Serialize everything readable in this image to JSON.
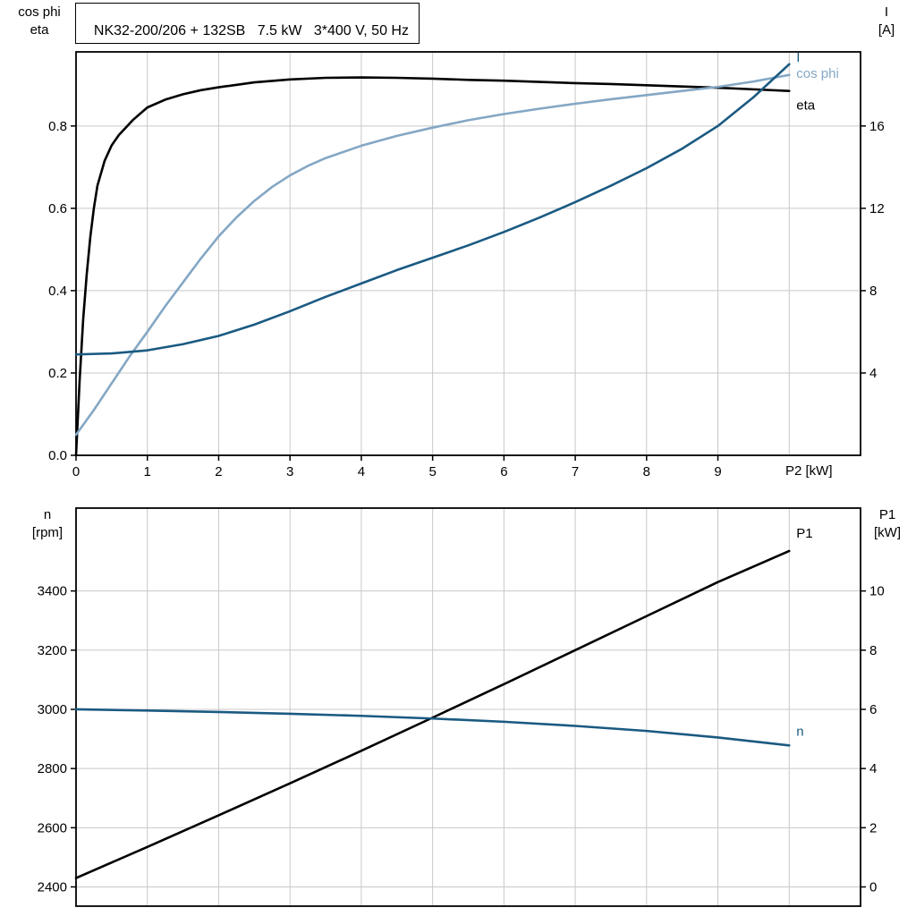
{
  "style": {
    "background": "#ffffff",
    "grid_color": "#c8c8c8",
    "frame_color": "#000000",
    "dark_blue": "#1a5a82",
    "light_blue": "#84a7c4",
    "black": "#000000"
  },
  "chart_data": [
    {
      "type": "line",
      "title": "NK32-200/206 + 132SB   7.5 kW   3*400 V, 50 Hz",
      "xlabel": "P2 [kW]",
      "xlim": [
        0,
        11
      ],
      "grid": "on",
      "x_gridlines": [
        1,
        2,
        3,
        4,
        5,
        6,
        7,
        8,
        9,
        10
      ],
      "x_ticks": [
        {
          "v": 0,
          "t": "0"
        },
        {
          "v": 1,
          "t": "1"
        },
        {
          "v": 2,
          "t": "2"
        },
        {
          "v": 3,
          "t": "3"
        },
        {
          "v": 4,
          "t": "4"
        },
        {
          "v": 5,
          "t": "5"
        },
        {
          "v": 6,
          "t": "6"
        },
        {
          "v": 7,
          "t": "7"
        },
        {
          "v": 8,
          "t": "8"
        },
        {
          "v": 9,
          "t": "9"
        }
      ],
      "left_axis": {
        "title_lines": [
          "cos phi",
          "eta"
        ],
        "lim": [
          0,
          0.98
        ],
        "ticks": [
          {
            "v": 0.0,
            "t": "0.0"
          },
          {
            "v": 0.2,
            "t": "0.2"
          },
          {
            "v": 0.4,
            "t": "0.4"
          },
          {
            "v": 0.6,
            "t": "0.6"
          },
          {
            "v": 0.8,
            "t": "0.8"
          }
        ]
      },
      "right_axis": {
        "title_lines": [
          "I",
          "[A]"
        ],
        "lim": [
          0,
          19.6
        ],
        "ticks": [
          {
            "v": 4,
            "t": "4"
          },
          {
            "v": 8,
            "t": "8"
          },
          {
            "v": 12,
            "t": "12"
          },
          {
            "v": 16,
            "t": "16"
          }
        ]
      },
      "series": [
        {
          "name": "eta",
          "color": "#000000",
          "axis": "left",
          "label_dy": 16,
          "x": [
            0,
            0.05,
            0.1,
            0.15,
            0.2,
            0.25,
            0.3,
            0.4,
            0.5,
            0.6,
            0.8,
            1,
            1.25,
            1.5,
            1.75,
            2,
            2.5,
            3,
            3.5,
            4,
            4.5,
            5,
            5.5,
            6,
            6.5,
            7,
            7.5,
            8,
            8.5,
            9,
            9.5,
            10
          ],
          "y": [
            0,
            0.18,
            0.33,
            0.44,
            0.53,
            0.6,
            0.655,
            0.715,
            0.753,
            0.778,
            0.815,
            0.845,
            0.864,
            0.877,
            0.887,
            0.894,
            0.906,
            0.913,
            0.917,
            0.918,
            0.917,
            0.915,
            0.912,
            0.91,
            0.907,
            0.904,
            0.902,
            0.899,
            0.896,
            0.893,
            0.889,
            0.885
          ]
        },
        {
          "name": "cos phi",
          "color": "#84a7c4",
          "axis": "left",
          "label_dy": -2,
          "x": [
            0,
            0.25,
            0.5,
            0.75,
            1,
            1.25,
            1.5,
            1.75,
            2,
            2.25,
            2.5,
            2.75,
            3,
            3.25,
            3.5,
            4,
            4.5,
            5,
            5.5,
            6,
            6.5,
            7,
            7.5,
            8,
            8.5,
            9,
            9.5,
            10
          ],
          "y": [
            0.05,
            0.11,
            0.175,
            0.24,
            0.3,
            0.362,
            0.42,
            0.478,
            0.532,
            0.578,
            0.618,
            0.652,
            0.68,
            0.703,
            0.722,
            0.752,
            0.776,
            0.796,
            0.814,
            0.829,
            0.842,
            0.854,
            0.865,
            0.875,
            0.885,
            0.895,
            0.908,
            0.924
          ]
        },
        {
          "name": "I",
          "color": "#1a5a82",
          "axis": "right",
          "label_dy": -8,
          "x": [
            0,
            0.5,
            1,
            1.5,
            2,
            2.5,
            3,
            3.5,
            4,
            4.5,
            5,
            5.5,
            6,
            6.5,
            7,
            7.5,
            8,
            8.5,
            9,
            9.5,
            10
          ],
          "y": [
            4.9,
            4.95,
            5.1,
            5.4,
            5.8,
            6.35,
            7.0,
            7.7,
            8.35,
            9.0,
            9.6,
            10.2,
            10.85,
            11.55,
            12.3,
            13.1,
            13.95,
            14.9,
            16.0,
            17.4,
            19.0
          ]
        }
      ]
    },
    {
      "type": "line",
      "title": "",
      "xlabel": "",
      "xlim": [
        0,
        11
      ],
      "grid": "on",
      "x_gridlines": [
        1,
        2,
        3,
        4,
        5,
        6,
        7,
        8,
        9,
        10
      ],
      "x_ticks": [],
      "left_axis": {
        "title_lines": [
          "n",
          "[rpm]"
        ],
        "lim": [
          2335,
          3680
        ],
        "ticks": [
          {
            "v": 2400,
            "t": "2400"
          },
          {
            "v": 2600,
            "t": "2600"
          },
          {
            "v": 2800,
            "t": "2800"
          },
          {
            "v": 3000,
            "t": "3000"
          },
          {
            "v": 3200,
            "t": "3200"
          },
          {
            "v": 3400,
            "t": "3400"
          }
        ]
      },
      "right_axis": {
        "title_lines": [
          "P1",
          "[kW]"
        ],
        "lim": [
          -0.65,
          12.8
        ],
        "ticks": [
          {
            "v": 0,
            "t": "0"
          },
          {
            "v": 2,
            "t": "2"
          },
          {
            "v": 4,
            "t": "4"
          },
          {
            "v": 6,
            "t": "6"
          },
          {
            "v": 8,
            "t": "8"
          },
          {
            "v": 10,
            "t": "10"
          }
        ]
      },
      "series": [
        {
          "name": "P1",
          "color": "#000000",
          "axis": "right",
          "label_dy": -20,
          "x": [
            0,
            1,
            2,
            3,
            4,
            5,
            6,
            7,
            8,
            9,
            10
          ],
          "y": [
            0.3,
            1.35,
            2.42,
            3.5,
            4.6,
            5.72,
            6.85,
            8.0,
            9.15,
            10.3,
            11.35
          ]
        },
        {
          "name": "n",
          "color": "#1a5a82",
          "axis": "left",
          "label_dy": -16,
          "x": [
            0,
            1,
            2,
            3,
            4,
            5,
            6,
            7,
            8,
            9,
            10
          ],
          "y": [
            3000,
            2996,
            2991,
            2985,
            2978,
            2969,
            2958,
            2944,
            2927,
            2905,
            2878
          ]
        }
      ]
    }
  ]
}
